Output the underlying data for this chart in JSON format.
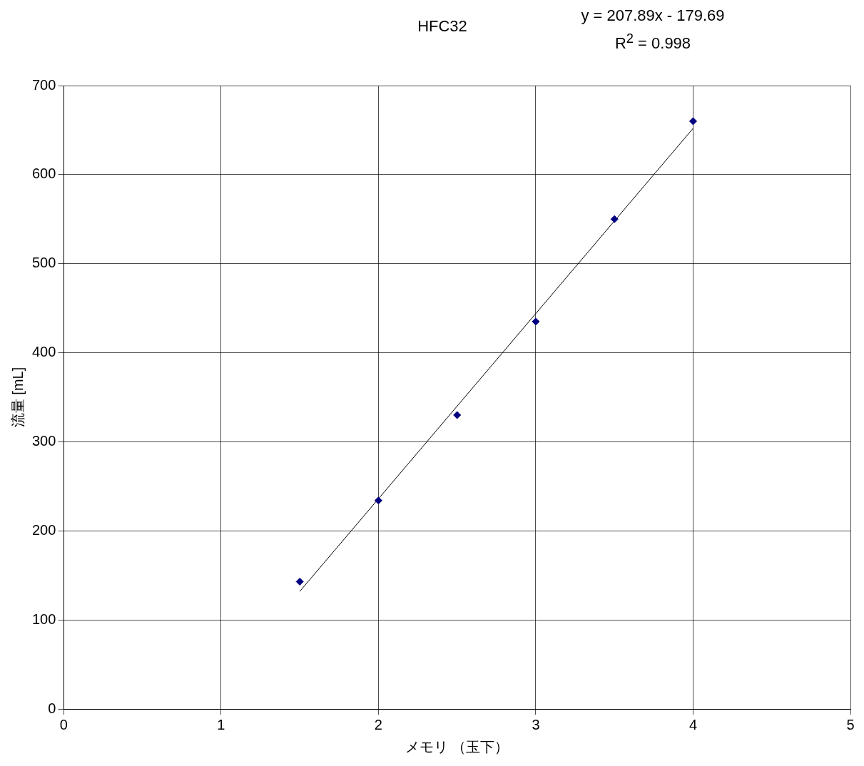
{
  "chart_data": {
    "type": "scatter",
    "title": "HFC32",
    "xlabel": "メモリ （玉下）",
    "ylabel": "流量 [mL]",
    "annotations": [
      "y = 207.89x  -  179.69",
      "R$^{2}$ = 0.998"
    ],
    "series": [
      {
        "color": "#000080",
        "x": [
          1.5,
          2,
          2.5,
          3,
          3.5,
          4
        ],
        "values": [
          143,
          234,
          330,
          435,
          550,
          660
        ]
      },
      {
        "type": "line",
        "color": "#000000",
        "x": [
          1.5,
          4
        ],
        "values": [
          132,
          652
        ],
        "marker": "none"
      }
    ],
    "xlim": [
      0,
      5
    ],
    "xticks": [
      0,
      1,
      2,
      3,
      4,
      5
    ],
    "ylim": [
      0,
      700
    ],
    "yticks": [
      0,
      100,
      200,
      300,
      400,
      500,
      600,
      700
    ],
    "grid": true,
    "marker": "diamond",
    "legend": false
  }
}
